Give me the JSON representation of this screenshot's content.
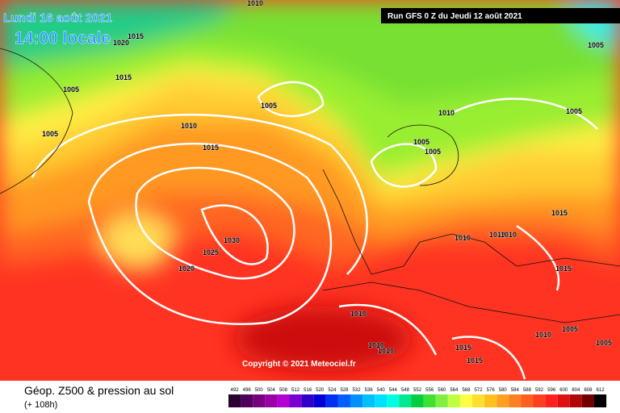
{
  "header": {
    "date": "Lundi 16 août 2021",
    "time": "14:00 locale",
    "run": "Run GFS 0 Z du Jeudi 12 août 2021"
  },
  "copyright": "Copyright © 2021 Meteociel.fr",
  "footer": {
    "title": "Géop. Z500 & pression au sol",
    "lead": "(+ 108h)"
  },
  "isobars": [
    1010,
    1015,
    1020,
    1015,
    1005,
    1005,
    1010,
    1015,
    1005,
    1010,
    1005,
    1005,
    1005,
    1005,
    1015,
    1010,
    1010,
    1010,
    1030,
    1025,
    1020,
    1015,
    1010,
    1010,
    1005,
    1005,
    1015,
    1015,
    1010,
    1010
  ],
  "legend": {
    "labels": [
      492,
      496,
      500,
      504,
      508,
      512,
      516,
      520,
      524,
      528,
      532,
      536,
      540,
      544,
      548,
      552,
      556,
      560,
      564,
      568,
      572,
      576,
      580,
      584,
      588,
      592,
      596,
      600,
      604,
      608,
      612
    ],
    "colors": [
      "#2a0030",
      "#50005a",
      "#780080",
      "#9a00a8",
      "#b400d0",
      "#7a00d0",
      "#3000c8",
      "#0000d8",
      "#0030f0",
      "#0060ff",
      "#0090ff",
      "#00c0ff",
      "#00e0ff",
      "#00ffe0",
      "#00e890",
      "#00d040",
      "#40e030",
      "#80f040",
      "#c0ff40",
      "#ffff40",
      "#ffe030",
      "#ffc020",
      "#ffa020",
      "#ff8020",
      "#ff6020",
      "#ff4020",
      "#ff2020",
      "#e01010",
      "#b00808",
      "#700000",
      "#000000"
    ]
  }
}
